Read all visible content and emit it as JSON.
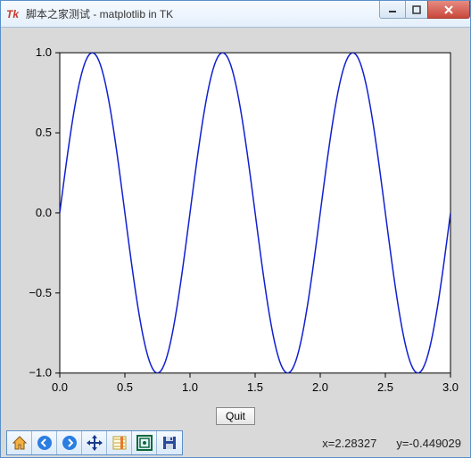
{
  "window": {
    "title": "脚本之家测试 - matplotlib in TK",
    "app_icon_color": "#c83a2e"
  },
  "chart": {
    "type": "line",
    "background_color": "#d9d9d9",
    "plot_background": "#ffffff",
    "axis_color": "#000000",
    "line_color": "#1020d0",
    "line_width": 1.5,
    "xlim": [
      0.0,
      3.0
    ],
    "ylim": [
      -1.0,
      1.0
    ],
    "xticks": [
      0.0,
      0.5,
      1.0,
      1.5,
      2.0,
      2.5,
      3.0
    ],
    "yticks": [
      -1.0,
      -0.5,
      0.0,
      0.5,
      1.0
    ],
    "xtick_labels": [
      "0.0",
      "0.5",
      "1.0",
      "1.5",
      "2.0",
      "2.5",
      "3.0"
    ],
    "ytick_labels": [
      "−1.0",
      "−0.5",
      "0.0",
      "0.5",
      "1.0"
    ],
    "tick_fontsize": 13,
    "series": {
      "function": "sin(2*pi*x)",
      "x_start": 0.0,
      "x_end": 3.0,
      "n_points": 240
    }
  },
  "quit_button": {
    "label": "Quit"
  },
  "toolbar": {
    "buttons": [
      {
        "name": "home-icon",
        "hint": "Home"
      },
      {
        "name": "back-icon",
        "hint": "Back"
      },
      {
        "name": "forward-icon",
        "hint": "Forward"
      },
      {
        "name": "pan-icon",
        "hint": "Pan"
      },
      {
        "name": "zoom-icon",
        "hint": "Zoom"
      },
      {
        "name": "subplots-icon",
        "hint": "Subplots"
      },
      {
        "name": "save-icon",
        "hint": "Save"
      }
    ]
  },
  "status": {
    "x_label": "x=2.28327",
    "y_label": "y=-0.449029"
  }
}
